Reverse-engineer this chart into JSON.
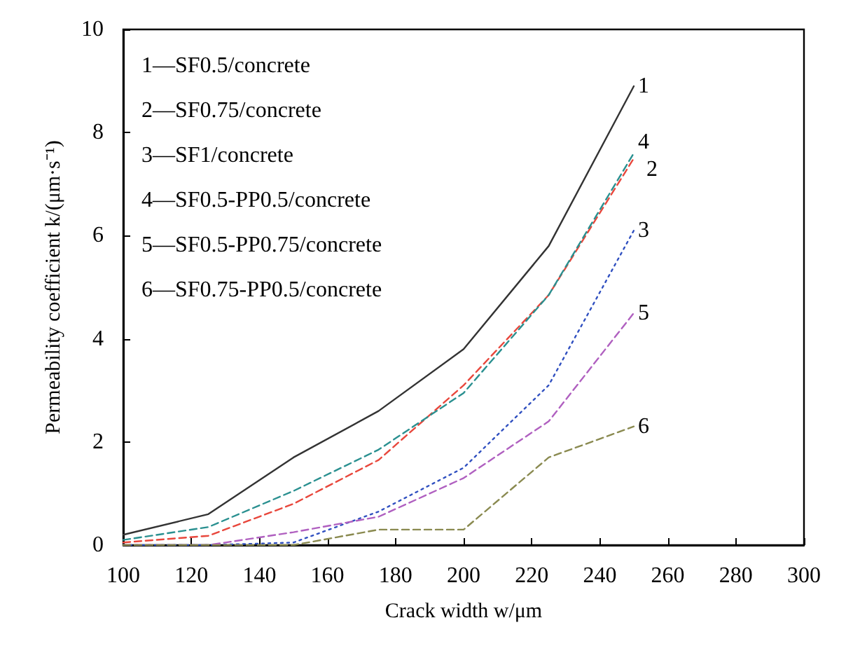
{
  "chart_data": {
    "type": "line",
    "xlabel": "Crack width w/μm",
    "ylabel": "Permeability coefficient k/(μm·s⁻¹)",
    "x": [
      100,
      125,
      150,
      175,
      200,
      225,
      250
    ],
    "series": [
      {
        "name": "1",
        "color": "#333333",
        "line_style": "solid",
        "values": [
          0.2,
          0.6,
          1.7,
          2.6,
          3.8,
          5.8,
          8.9
        ]
      },
      {
        "name": "2",
        "color": "#e8473c",
        "line_style": "dashed",
        "values": [
          0.05,
          0.18,
          0.8,
          1.65,
          3.1,
          4.85,
          7.5
        ]
      },
      {
        "name": "3",
        "color": "#3050c0",
        "line_style": "dotted",
        "values": [
          0,
          0,
          0.05,
          0.65,
          1.5,
          3.1,
          6.1
        ]
      },
      {
        "name": "4",
        "color": "#2a9090",
        "line_style": "dashed",
        "values": [
          0.1,
          0.35,
          1.05,
          1.85,
          2.95,
          4.85,
          7.6
        ]
      },
      {
        "name": "5",
        "color": "#b060c0",
        "line_style": "dashed",
        "values": [
          0,
          0,
          0.25,
          0.55,
          1.3,
          2.4,
          4.5
        ]
      },
      {
        "name": "6",
        "color": "#8a8a50",
        "line_style": "dashed",
        "values": [
          0,
          0,
          0,
          0.3,
          0.3,
          1.7,
          2.3
        ]
      }
    ],
    "annotations": [
      "1—SF0.5/concrete",
      "2—SF0.75/concrete",
      "3—SF1/concrete",
      "4—SF0.5-PP0.5/concrete",
      "5—SF0.5-PP0.75/concrete",
      "6—SF0.75-PP0.5/concrete"
    ],
    "xlim": [
      100,
      300
    ],
    "xticks": [
      100,
      120,
      140,
      160,
      180,
      200,
      220,
      240,
      260,
      280,
      300
    ],
    "ylim": [
      0,
      10
    ],
    "yticks": [
      0,
      2,
      4,
      6,
      8,
      10
    ],
    "grid": false,
    "legend": false,
    "marker": "none"
  }
}
